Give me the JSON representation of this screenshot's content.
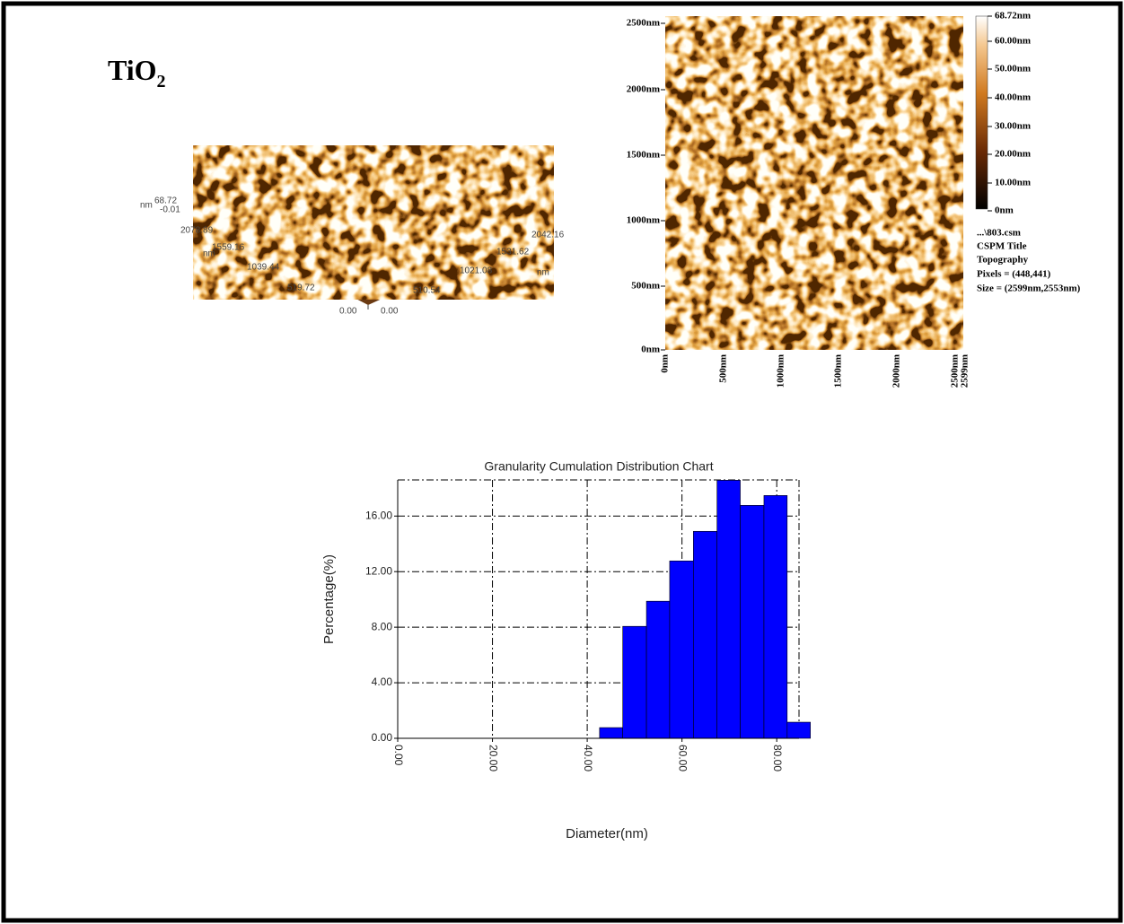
{
  "label": {
    "text": "TiO",
    "subscript": "2"
  },
  "afm_3d": {
    "z_unit": "nm",
    "z_labels": [
      "68.72",
      "-0.01"
    ],
    "y_unit": "nm",
    "y_labels": [
      "2078.89",
      "1559.16",
      "1039.44",
      "519.72",
      "0.00"
    ],
    "x_unit": "nm",
    "x_labels": [
      "0.00",
      "510.54",
      "1021.08",
      "1531.62",
      "2042.16"
    ]
  },
  "afm_2d": {
    "y_labels": [
      "2500nm",
      "2000nm",
      "1500nm",
      "1000nm",
      "500nm",
      "0nm"
    ],
    "x_labels": [
      "0nm",
      "500nm",
      "1000nm",
      "1500nm",
      "2000nm",
      "2500nm",
      "2599nm"
    ],
    "colorbar_labels": [
      "68.72nm",
      "60.00nm",
      "50.00nm",
      "40.00nm",
      "30.00nm",
      "20.00nm",
      "10.00nm",
      "0nm"
    ],
    "info": [
      "...\\803.csm",
      "CSPM Title",
      "Topography",
      "Pixels = (448,441)",
      "Size = (2599nm,2553nm)"
    ]
  },
  "chart_data": {
    "type": "histogram",
    "title": "Granularity Cumulation Distribution  Chart",
    "x_label": "Diameter(nm)",
    "y_label": "Percentage(%)",
    "color": "#0000ff",
    "grid": true,
    "bins": [
      42.6,
      47.5,
      52.5,
      57.4,
      62.4,
      67.4,
      72.3,
      77.3,
      82.2,
      87.1
    ],
    "values": [
      0.77,
      8.06,
      9.87,
      12.77,
      14.9,
      18.58,
      16.77,
      17.48,
      1.16
    ],
    "xlim": [
      0,
      84.7
    ],
    "ylim": [
      0,
      18.6
    ],
    "xticks": [
      {
        "value": 0,
        "label": "0.00"
      },
      {
        "value": 20,
        "label": "20.00"
      },
      {
        "value": 40,
        "label": "40.00"
      },
      {
        "value": 60,
        "label": "60.00"
      },
      {
        "value": 80,
        "label": "80.00"
      }
    ],
    "yticks": [
      {
        "value": 0,
        "label": "0.00"
      },
      {
        "value": 4,
        "label": "4.00"
      },
      {
        "value": 8,
        "label": "8.00"
      },
      {
        "value": 12,
        "label": "12.00"
      },
      {
        "value": 16,
        "label": "16.00"
      }
    ]
  }
}
